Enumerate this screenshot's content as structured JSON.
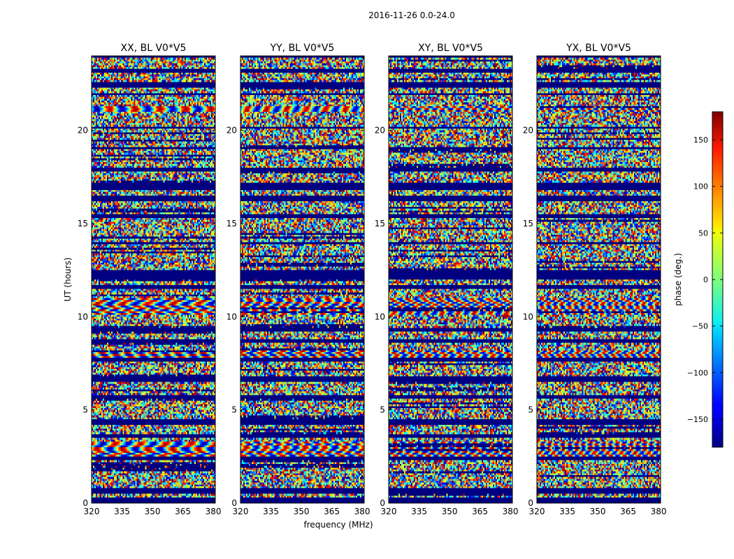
{
  "figure_title": "2016-11-26 0.0-24.0",
  "chart_data": {
    "type": "heatmap",
    "title": "2016-11-26 0.0-24.0",
    "xlabel": "frequency (MHz)",
    "ylabel": "UT (hours)",
    "xlim": [
      320,
      381
    ],
    "ylim": [
      0,
      24
    ],
    "xticks": [
      320,
      335,
      350,
      365,
      380
    ],
    "yticks": [
      0,
      5,
      10,
      15,
      20
    ],
    "panels": [
      {
        "title": "XX, BL V0*V5",
        "polarization": "XX",
        "baseline": "V0*V5"
      },
      {
        "title": "YY, BL V0*V5",
        "polarization": "YY",
        "baseline": "V0*V5"
      },
      {
        "title": "XY, BL V0*V5",
        "polarization": "XY",
        "baseline": "V0*V5"
      },
      {
        "title": "YX, BL V0*V5",
        "polarization": "YX",
        "baseline": "V0*V5"
      }
    ],
    "colorbar": {
      "label": "phase (deg.)",
      "range": [
        -180,
        180
      ],
      "ticks": [
        150,
        100,
        50,
        0,
        -50,
        -100,
        -150
      ],
      "colormap": "jet"
    },
    "flagged_bands_ut_hours": [
      [
        0.05,
        0.3
      ],
      [
        0.55,
        0.75
      ],
      [
        2.3,
        2.45
      ],
      [
        3.55,
        3.7
      ],
      [
        4.2,
        4.45
      ],
      [
        5.6,
        5.75
      ],
      [
        6.55,
        6.8
      ],
      [
        7.6,
        7.75
      ],
      [
        8.6,
        8.75
      ],
      [
        9.2,
        9.35
      ],
      [
        11.5,
        11.7
      ],
      [
        12.0,
        12.5
      ],
      [
        13.9,
        14.0
      ],
      [
        15.3,
        15.45
      ],
      [
        16.2,
        16.45
      ],
      [
        16.85,
        17.15
      ],
      [
        17.8,
        17.95
      ],
      [
        19.0,
        19.1
      ],
      [
        20.1,
        20.2
      ],
      [
        21.9,
        22.0
      ],
      [
        22.35,
        22.55
      ],
      [
        23.15,
        23.3
      ],
      [
        23.9,
        24.0
      ]
    ],
    "smooth_bands_ut_hours": [
      [
        2.5,
        3.3
      ],
      [
        7.8,
        8.2
      ],
      [
        10.1,
        11.0
      ],
      [
        21.0,
        21.3
      ]
    ]
  }
}
